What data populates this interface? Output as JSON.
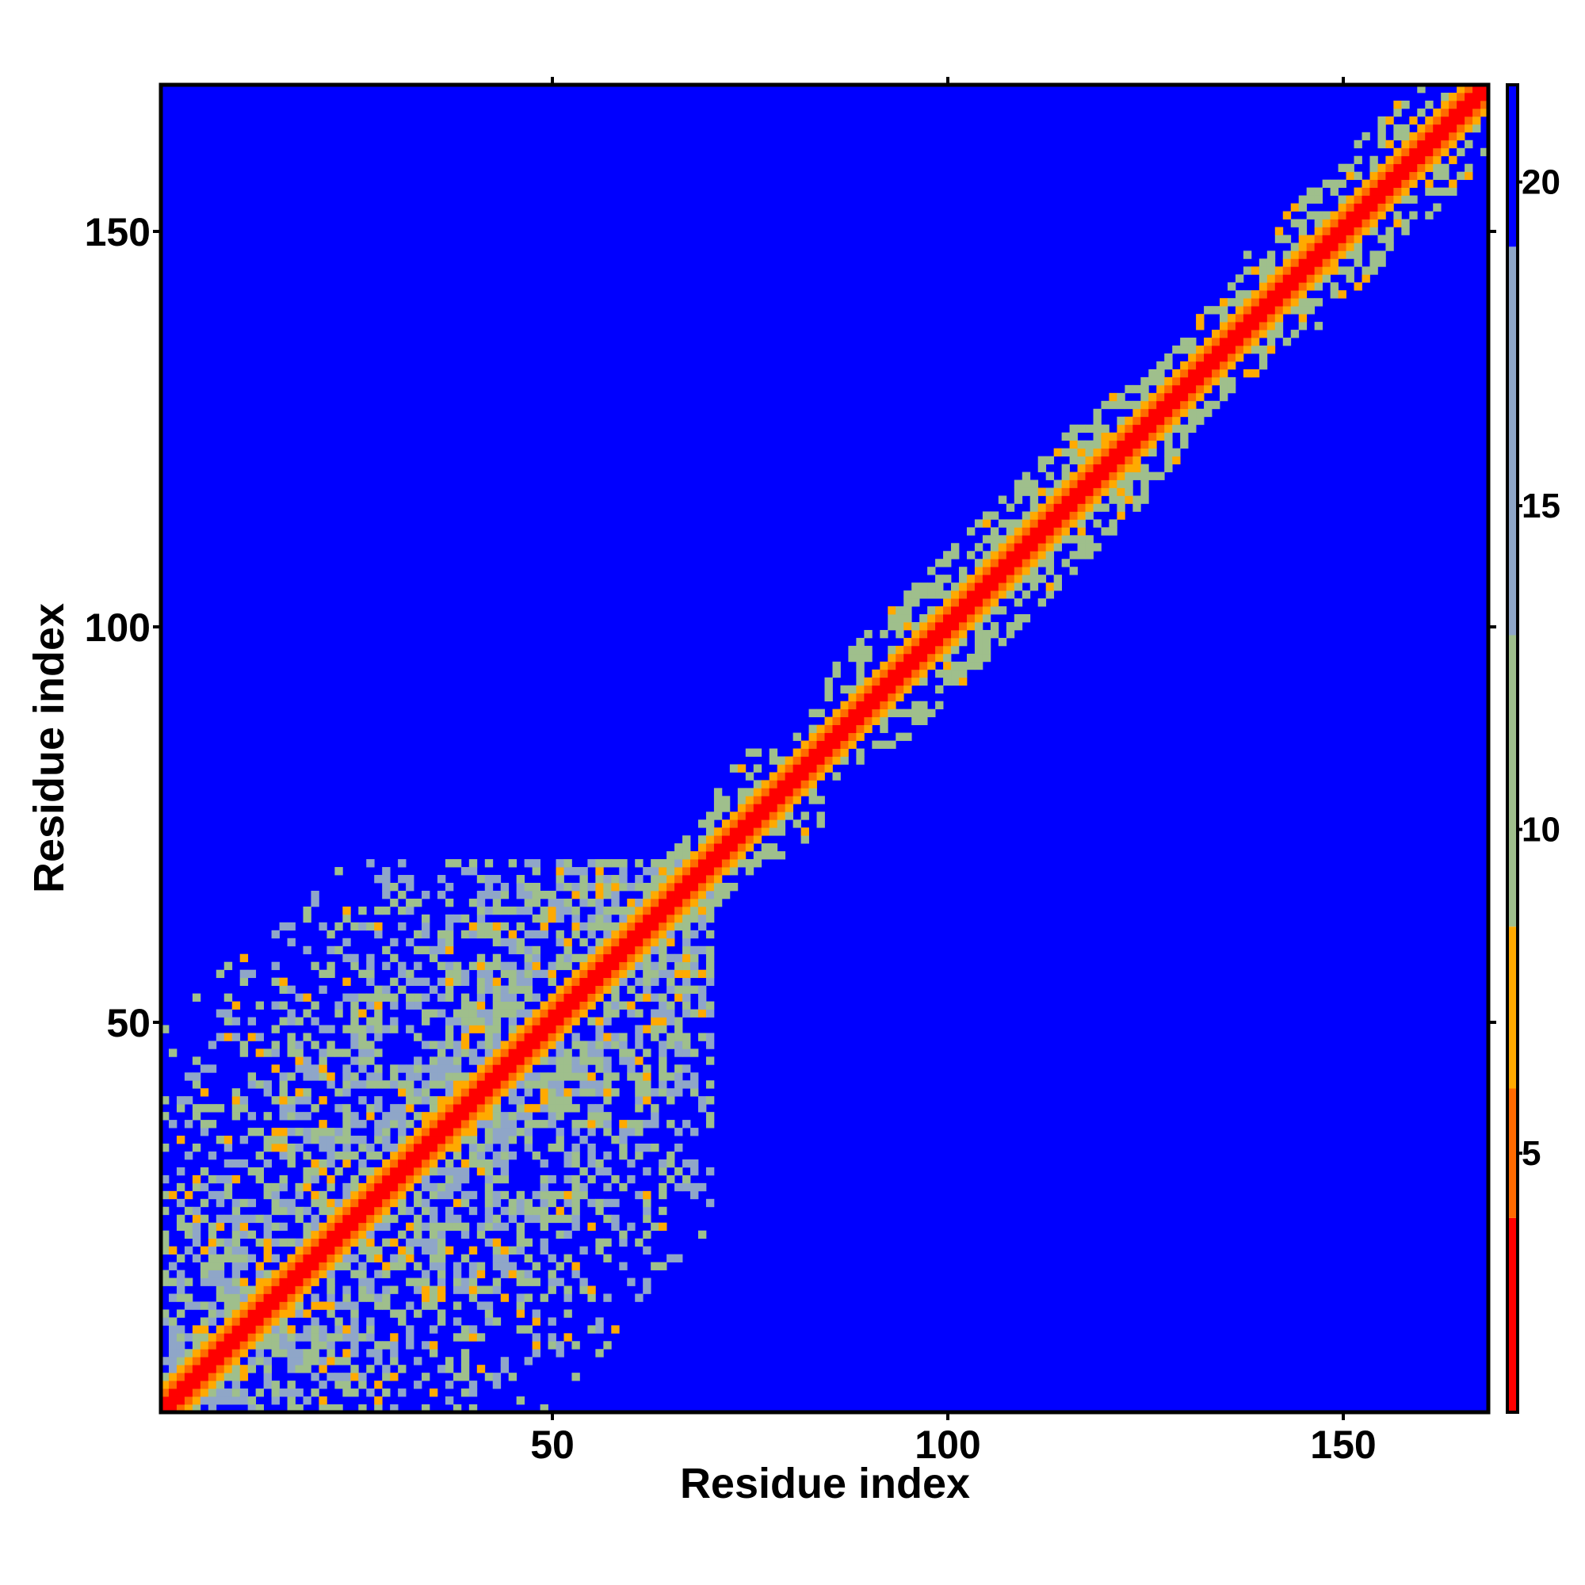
{
  "chart_data": {
    "type": "heatmap",
    "title": "",
    "xlabel": "Residue index",
    "ylabel": "Residue index",
    "xlim": [
      1,
      168
    ],
    "ylim": [
      1,
      168
    ],
    "x_ticks": [
      50,
      100,
      150
    ],
    "y_ticks": [
      50,
      100,
      150
    ],
    "x_tick_labels": [
      "50",
      "100",
      "150"
    ],
    "y_tick_labels": [
      "50",
      "100",
      "150"
    ],
    "n_residues": 168,
    "colorbar": {
      "range": [
        1,
        21.5
      ],
      "ticks": [
        5,
        10,
        15,
        20
      ],
      "tick_labels": [
        "5",
        "10",
        "15",
        "20"
      ],
      "palette": [
        {
          "from": 1,
          "to": 4,
          "color": "#ff0000"
        },
        {
          "from": 4,
          "to": 6,
          "color": "#ff6a00"
        },
        {
          "from": 6,
          "to": 8.5,
          "color": "#ffaa00"
        },
        {
          "from": 8.5,
          "to": 13,
          "color": "#9fbf8c"
        },
        {
          "from": 13,
          "to": 19,
          "color": "#8fa6c8"
        },
        {
          "from": 19,
          "to": 21.5,
          "color": "#0000ff"
        }
      ]
    },
    "background_value": 21,
    "background_color": "#0000ff",
    "structure": {
      "diagonal_band_values": [
        {
          "offset": 0,
          "value": 2
        },
        {
          "offset": 1,
          "value": 3
        },
        {
          "offset": 2,
          "value": 5.5
        },
        {
          "offset": 3,
          "value": 6.5
        }
      ],
      "domains": [
        {
          "residues": [
            1,
            70
          ],
          "contact_value_range": [
            8,
            17
          ],
          "density": 0.78
        },
        {
          "residues": [
            70,
            84
          ],
          "contact_value_range": [
            9,
            13
          ],
          "density": 0.7
        },
        {
          "residues": [
            84,
            130
          ],
          "contact_value_range": [
            9,
            12
          ],
          "density": 0.85
        },
        {
          "residues": [
            130,
            168
          ],
          "contact_value_range": [
            8,
            13
          ],
          "density": 0.7
        }
      ]
    }
  }
}
